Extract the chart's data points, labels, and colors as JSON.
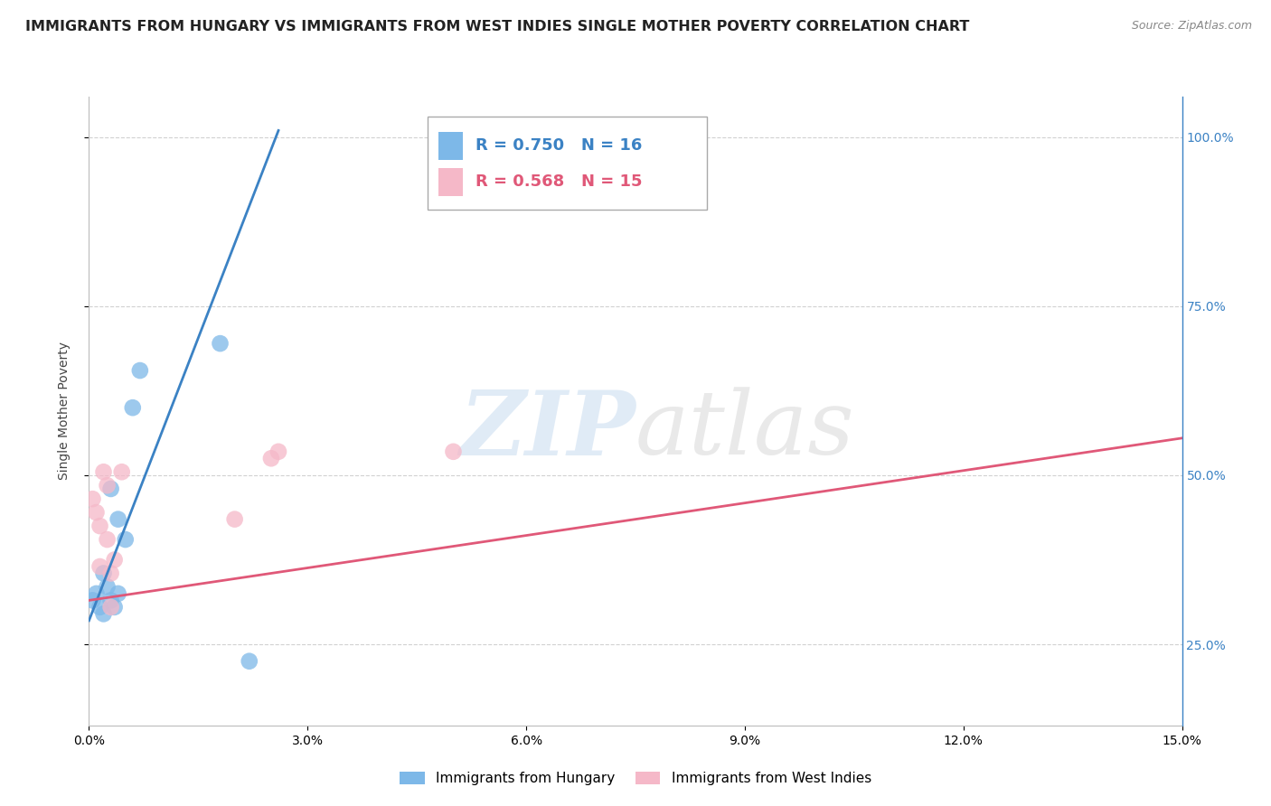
{
  "title": "IMMIGRANTS FROM HUNGARY VS IMMIGRANTS FROM WEST INDIES SINGLE MOTHER POVERTY CORRELATION CHART",
  "source": "Source: ZipAtlas.com",
  "ylabel": "Single Mother Poverty",
  "legend_blue_r": "R = 0.750",
  "legend_blue_n": "N = 16",
  "legend_pink_r": "R = 0.568",
  "legend_pink_n": "N = 15",
  "blue_scatter_x": [
    0.0005,
    0.001,
    0.0015,
    0.002,
    0.002,
    0.0025,
    0.003,
    0.003,
    0.0035,
    0.004,
    0.004,
    0.005,
    0.006,
    0.007,
    0.018,
    0.022
  ],
  "blue_scatter_y": [
    0.315,
    0.325,
    0.305,
    0.355,
    0.295,
    0.335,
    0.315,
    0.48,
    0.305,
    0.325,
    0.435,
    0.405,
    0.6,
    0.655,
    0.695,
    0.225
  ],
  "pink_scatter_x": [
    0.0005,
    0.001,
    0.0015,
    0.0015,
    0.002,
    0.0025,
    0.0025,
    0.003,
    0.003,
    0.0035,
    0.0045,
    0.02,
    0.025,
    0.026,
    0.05
  ],
  "pink_scatter_y": [
    0.465,
    0.445,
    0.425,
    0.365,
    0.505,
    0.485,
    0.405,
    0.355,
    0.305,
    0.375,
    0.505,
    0.435,
    0.525,
    0.535,
    0.535
  ],
  "blue_line_x": [
    0.0,
    0.026
  ],
  "blue_line_y": [
    0.285,
    1.01
  ],
  "pink_line_x": [
    0.0,
    0.15
  ],
  "pink_line_y": [
    0.315,
    0.555
  ],
  "blue_color": "#7DB8E8",
  "pink_color": "#F5B8C8",
  "blue_line_color": "#3B82C4",
  "pink_line_color": "#E05878",
  "watermark_zip": "ZIP",
  "watermark_atlas": "atlas",
  "background_color": "#FFFFFF",
  "grid_color": "#CCCCCC",
  "title_fontsize": 11.5,
  "axis_fontsize": 10,
  "legend_fontsize": 13,
  "xmin": 0.0,
  "xmax": 0.15,
  "ymin": 0.13,
  "ymax": 1.06,
  "yticks": [
    0.25,
    0.5,
    0.75,
    1.0
  ],
  "ytick_labels": [
    "25.0%",
    "50.0%",
    "75.0%",
    "100.0%"
  ],
  "xticks": [
    0.0,
    0.03,
    0.06,
    0.09,
    0.12,
    0.15
  ],
  "xtick_labels": [
    "0.0%",
    "3.0%",
    "6.0%",
    "9.0%",
    "12.0%",
    "15.0%"
  ]
}
